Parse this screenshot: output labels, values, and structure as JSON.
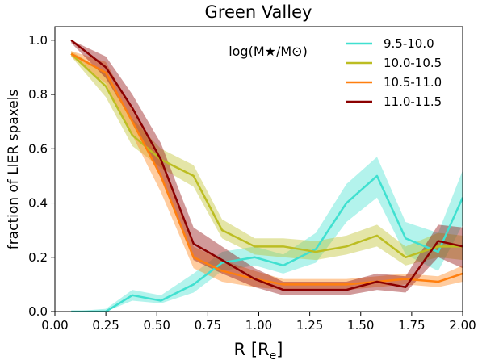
{
  "chart_data": {
    "type": "line",
    "title": "Green Valley",
    "xlabel": "R [R_e]",
    "ylabel": "fraction of LIER spaxels",
    "xlim": [
      0.0,
      2.0
    ],
    "ylim": [
      0.0,
      1.05
    ],
    "xticks": [
      0.0,
      0.25,
      0.5,
      0.75,
      1.0,
      1.25,
      1.5,
      1.75,
      2.0
    ],
    "xtick_labels": [
      "0.00",
      "0.25",
      "0.50",
      "0.75",
      "1.00",
      "1.25",
      "1.50",
      "1.75",
      "2.00"
    ],
    "yticks": [
      0.0,
      0.2,
      0.4,
      0.6,
      0.8,
      1.0
    ],
    "ytick_labels": [
      "0.0",
      "0.2",
      "0.4",
      "0.6",
      "0.8",
      "1.0"
    ],
    "grid": false,
    "legend_title": "log(M★/M⊙)",
    "legend_position": "top-right",
    "series": [
      {
        "name": "9.5-10.0",
        "color": "#40e0d0",
        "x": [
          0.08,
          0.25,
          0.38,
          0.52,
          0.68,
          0.82,
          0.98,
          1.12,
          1.28,
          1.43,
          1.58,
          1.72,
          1.88,
          2.0
        ],
        "y": [
          0.0,
          0.0,
          0.06,
          0.04,
          0.1,
          0.18,
          0.2,
          0.17,
          0.23,
          0.4,
          0.5,
          0.27,
          0.22,
          0.42
        ],
        "lo": [
          0.0,
          0.0,
          0.04,
          0.03,
          0.07,
          0.15,
          0.17,
          0.14,
          0.18,
          0.33,
          0.42,
          0.21,
          0.15,
          0.32
        ],
        "hi": [
          0.0,
          0.01,
          0.08,
          0.06,
          0.14,
          0.22,
          0.24,
          0.21,
          0.29,
          0.47,
          0.57,
          0.33,
          0.29,
          0.52
        ]
      },
      {
        "name": "10.0-10.5",
        "color": "#bcbd22",
        "x": [
          0.08,
          0.25,
          0.38,
          0.52,
          0.68,
          0.82,
          0.98,
          1.12,
          1.28,
          1.43,
          1.58,
          1.72,
          1.88,
          2.0
        ],
        "y": [
          0.95,
          0.83,
          0.65,
          0.56,
          0.5,
          0.3,
          0.24,
          0.24,
          0.22,
          0.24,
          0.28,
          0.2,
          0.24,
          0.24
        ],
        "lo": [
          0.94,
          0.79,
          0.61,
          0.53,
          0.46,
          0.27,
          0.21,
          0.2,
          0.19,
          0.21,
          0.24,
          0.17,
          0.2,
          0.19
        ],
        "hi": [
          0.96,
          0.88,
          0.71,
          0.6,
          0.54,
          0.34,
          0.27,
          0.27,
          0.26,
          0.28,
          0.32,
          0.24,
          0.29,
          0.28
        ]
      },
      {
        "name": "10.5-11.0",
        "color": "#ff7f0e",
        "x": [
          0.08,
          0.25,
          0.38,
          0.52,
          0.68,
          0.82,
          0.98,
          1.12,
          1.28,
          1.43,
          1.58,
          1.72,
          1.88,
          2.0
        ],
        "y": [
          0.95,
          0.88,
          0.7,
          0.5,
          0.2,
          0.15,
          0.12,
          0.1,
          0.1,
          0.1,
          0.11,
          0.12,
          0.11,
          0.14
        ],
        "lo": [
          0.94,
          0.84,
          0.65,
          0.44,
          0.16,
          0.11,
          0.09,
          0.08,
          0.08,
          0.08,
          0.09,
          0.1,
          0.09,
          0.11
        ],
        "hi": [
          0.96,
          0.92,
          0.74,
          0.55,
          0.24,
          0.19,
          0.15,
          0.12,
          0.12,
          0.12,
          0.13,
          0.14,
          0.13,
          0.17
        ]
      },
      {
        "name": "11.0-11.5",
        "color": "#8b0000",
        "x": [
          0.08,
          0.25,
          0.38,
          0.52,
          0.68,
          0.82,
          0.98,
          1.12,
          1.28,
          1.43,
          1.58,
          1.72,
          1.88,
          2.0
        ],
        "y": [
          1.0,
          0.9,
          0.75,
          0.56,
          0.25,
          0.19,
          0.12,
          0.08,
          0.08,
          0.08,
          0.11,
          0.09,
          0.26,
          0.24
        ],
        "lo": [
          0.99,
          0.86,
          0.7,
          0.49,
          0.19,
          0.14,
          0.09,
          0.06,
          0.06,
          0.06,
          0.08,
          0.07,
          0.2,
          0.16
        ],
        "hi": [
          1.0,
          0.94,
          0.8,
          0.62,
          0.31,
          0.24,
          0.16,
          0.11,
          0.11,
          0.11,
          0.14,
          0.13,
          0.32,
          0.31
        ]
      }
    ]
  }
}
